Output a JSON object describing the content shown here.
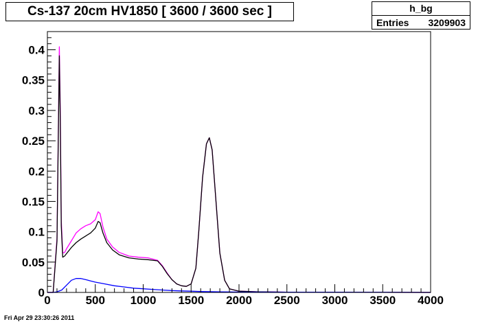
{
  "title_box": {
    "text": "Cs-137 20cm HV1850 [ 3600 / 3600 sec ]"
  },
  "stats_box": {
    "name": "h_bg",
    "entries_label": "Entries",
    "entries_value": "3209903"
  },
  "datestamp": "Fri Apr 29 23:30:26 2011",
  "chart_data": {
    "type": "line",
    "title": "Cs-137 20cm HV1850 [ 3600 / 3600 sec ]",
    "xlabel": "",
    "ylabel": "",
    "xlim": [
      0,
      4000
    ],
    "ylim": [
      0,
      0.43
    ],
    "grid": false,
    "x_ticks": [
      0,
      500,
      1000,
      1500,
      2000,
      2500,
      3000,
      3500,
      4000
    ],
    "x_tick_labels": [
      "0",
      "500",
      "1000",
      "1500",
      "2000",
      "2500",
      "3000",
      "3500",
      "4000"
    ],
    "y_ticks": [
      0,
      0.05,
      0.1,
      0.15,
      0.2,
      0.25,
      0.3,
      0.35,
      0.4
    ],
    "y_tick_labels": [
      "0",
      "0.05",
      "0.1",
      "0.15",
      "0.2",
      "0.25",
      "0.3",
      "0.35",
      "0.4"
    ],
    "series": [
      {
        "color": "#ff00ff",
        "x": [
          0,
          60,
          100,
          125,
          135,
          145,
          160,
          180,
          200,
          250,
          300,
          350,
          400,
          450,
          500,
          530,
          550,
          580,
          620,
          680,
          750,
          850,
          950,
          1050,
          1150,
          1200,
          1250,
          1300,
          1350,
          1400,
          1450,
          1500,
          1550,
          1580,
          1620,
          1660,
          1690,
          1720,
          1760,
          1800,
          1850,
          1900,
          2000,
          2200,
          2500,
          3000,
          3500,
          4000
        ],
        "y": [
          0,
          0,
          0.09,
          0.405,
          0.3,
          0.12,
          0.065,
          0.066,
          0.072,
          0.085,
          0.098,
          0.105,
          0.11,
          0.113,
          0.12,
          0.133,
          0.13,
          0.108,
          0.088,
          0.075,
          0.066,
          0.06,
          0.058,
          0.057,
          0.053,
          0.044,
          0.032,
          0.021,
          0.014,
          0.011,
          0.01,
          0.014,
          0.04,
          0.1,
          0.19,
          0.245,
          0.255,
          0.235,
          0.15,
          0.065,
          0.02,
          0.006,
          0.002,
          0.001,
          0.0005,
          0.0002,
          0.0001,
          0
        ]
      },
      {
        "color": "#000000",
        "x": [
          0,
          60,
          100,
          125,
          135,
          145,
          160,
          180,
          200,
          250,
          300,
          350,
          400,
          450,
          500,
          530,
          550,
          580,
          620,
          680,
          750,
          850,
          950,
          1050,
          1150,
          1200,
          1250,
          1300,
          1350,
          1400,
          1450,
          1500,
          1550,
          1580,
          1620,
          1660,
          1690,
          1720,
          1760,
          1800,
          1850,
          1900,
          2000,
          2200,
          2500,
          3000,
          3500,
          4000
        ],
        "y": [
          0,
          0,
          0.085,
          0.39,
          0.28,
          0.11,
          0.058,
          0.06,
          0.064,
          0.074,
          0.082,
          0.088,
          0.093,
          0.098,
          0.106,
          0.117,
          0.115,
          0.098,
          0.082,
          0.07,
          0.062,
          0.057,
          0.055,
          0.054,
          0.052,
          0.043,
          0.031,
          0.021,
          0.014,
          0.011,
          0.01,
          0.014,
          0.04,
          0.1,
          0.19,
          0.245,
          0.255,
          0.235,
          0.15,
          0.065,
          0.02,
          0.006,
          0.002,
          0.001,
          0.0005,
          0.0002,
          0.0001,
          0
        ]
      },
      {
        "color": "#0000ff",
        "x": [
          0,
          60,
          100,
          150,
          200,
          250,
          300,
          350,
          400,
          450,
          500,
          600,
          700,
          800,
          900,
          1000,
          1100,
          1200,
          1300,
          1400,
          1500,
          1600,
          1700,
          1800,
          1900,
          2000,
          2500,
          3000,
          3500,
          4000
        ],
        "y": [
          0,
          0,
          0.001,
          0.004,
          0.012,
          0.02,
          0.023,
          0.023,
          0.021,
          0.019,
          0.017,
          0.014,
          0.011,
          0.009,
          0.007,
          0.006,
          0.005,
          0.004,
          0.003,
          0.0025,
          0.002,
          0.0015,
          0.0012,
          0.001,
          0.0008,
          0.0006,
          0.0004,
          0.0003,
          0.0002,
          0
        ]
      }
    ]
  }
}
